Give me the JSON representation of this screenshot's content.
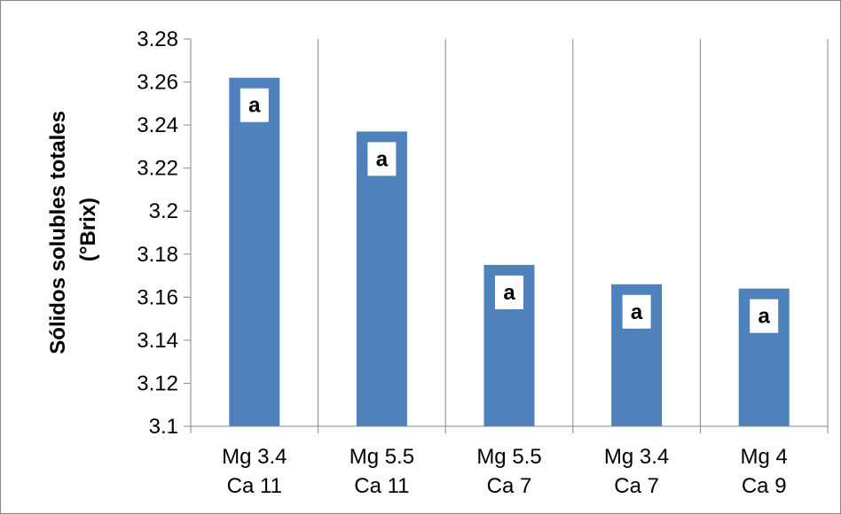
{
  "chart_data": {
    "type": "bar",
    "categories": [
      [
        "Mg 3.4",
        "Ca 11"
      ],
      [
        "Mg 5.5",
        "Ca 11"
      ],
      [
        "Mg 5.5",
        "Ca 7"
      ],
      [
        "Mg 3.4",
        "Ca 7"
      ],
      [
        "Mg 4",
        "Ca 9"
      ]
    ],
    "values": [
      3.262,
      3.237,
      3.175,
      3.166,
      3.164
    ],
    "data_labels": [
      "a",
      "a",
      "a",
      "a",
      "a"
    ],
    "title": "",
    "xlabel": "",
    "ylabel": [
      "Sólidos solubles totales",
      "(°Brix)"
    ],
    "ylim": [
      3.1,
      3.28
    ],
    "yticks": [
      3.1,
      3.12,
      3.14,
      3.16,
      3.18,
      3.2,
      3.22,
      3.24,
      3.26,
      3.28
    ],
    "ytick_labels": [
      "3.1",
      "3.12",
      "3.14",
      "3.16",
      "3.18",
      "3.2",
      "3.22",
      "3.24",
      "3.26",
      "3.28"
    ],
    "grid": {
      "vertical": true,
      "horizontal": false
    },
    "legend": "none",
    "colors": {
      "bar": "#4F81BD",
      "grid": "#868686",
      "label_box": "#FFFFFF"
    }
  }
}
